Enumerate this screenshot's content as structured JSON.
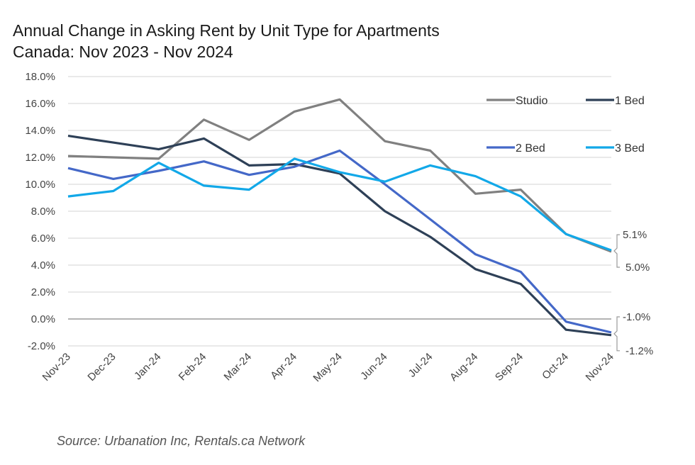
{
  "chart_data": {
    "type": "line",
    "title": "Annual Change in Asking Rent by Unit Type for Apartments",
    "subtitle": "Canada: Nov 2023 - Nov 2024",
    "source": "Source: Urbanation Inc, Rentals.ca Network",
    "xlabel": "",
    "ylabel": "",
    "ylim": [
      -2.0,
      18.0
    ],
    "yticks": [
      -2.0,
      0.0,
      2.0,
      4.0,
      6.0,
      8.0,
      10.0,
      12.0,
      14.0,
      16.0,
      18.0
    ],
    "ytick_labels": [
      "-2.0%",
      "0.0%",
      "2.0%",
      "4.0%",
      "6.0%",
      "8.0%",
      "10.0%",
      "12.0%",
      "14.0%",
      "16.0%",
      "18.0%"
    ],
    "grid": true,
    "legend_position": "top-right",
    "categories": [
      "Nov-23",
      "Dec-23",
      "Jan-24",
      "Feb-24",
      "Mar-24",
      "Apr-24",
      "May-24",
      "Jun-24",
      "Jul-24",
      "Aug-24",
      "Sep-24",
      "Oct-24",
      "Nov-24"
    ],
    "series": [
      {
        "name": "Studio",
        "color": "#808080",
        "values": [
          12.1,
          12.0,
          11.9,
          14.8,
          13.3,
          15.4,
          16.3,
          13.2,
          12.5,
          9.3,
          9.6,
          6.3,
          5.0
        ]
      },
      {
        "name": "1 Bed",
        "color": "#2e4057",
        "values": [
          13.6,
          13.1,
          12.6,
          13.4,
          11.4,
          11.5,
          10.8,
          8.0,
          6.1,
          3.7,
          2.6,
          -0.8,
          -1.2
        ]
      },
      {
        "name": "2 Bed",
        "color": "#4468c8",
        "values": [
          11.2,
          10.4,
          11.0,
          11.7,
          10.7,
          11.3,
          12.5,
          10.0,
          7.4,
          4.8,
          3.5,
          -0.2,
          -1.0
        ]
      },
      {
        "name": "3 Bed",
        "color": "#12a8e8",
        "values": [
          9.1,
          9.5,
          11.6,
          9.9,
          9.6,
          11.9,
          10.9,
          10.2,
          11.4,
          10.6,
          9.1,
          6.3,
          5.1
        ]
      }
    ],
    "annotations": [
      {
        "label": "5.1%",
        "series": "3 Bed",
        "value": 5.1
      },
      {
        "label": "5.0%",
        "series": "Studio",
        "value": 5.0
      },
      {
        "label": "-1.0%",
        "series": "2 Bed",
        "value": -1.0
      },
      {
        "label": "-1.2%",
        "series": "1 Bed",
        "value": -1.2
      }
    ]
  }
}
